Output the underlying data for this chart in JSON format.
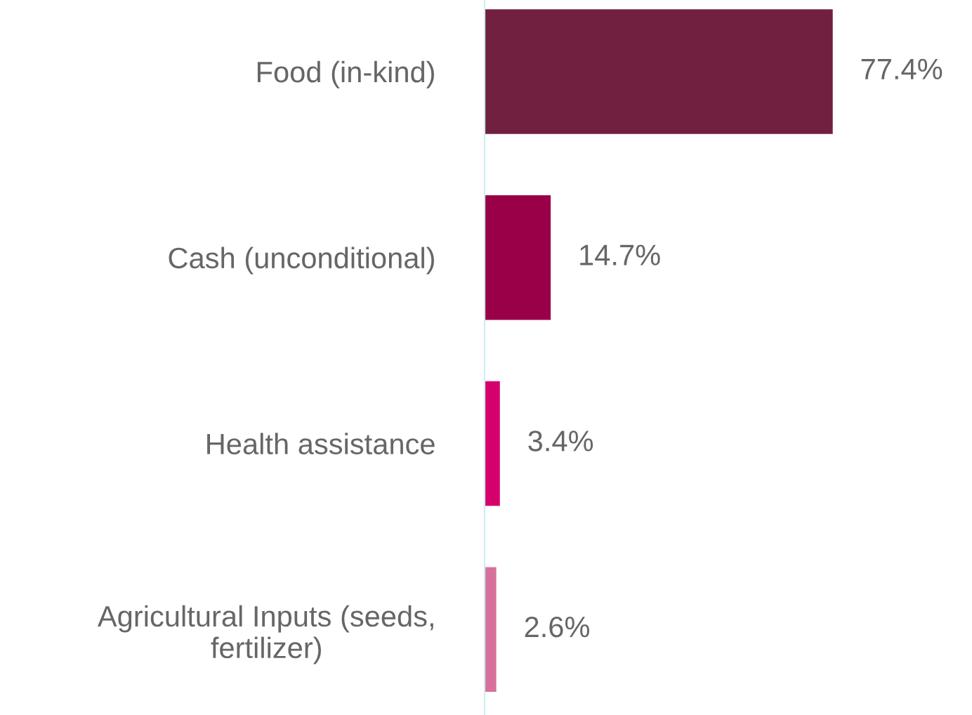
{
  "chart_data": {
    "type": "bar",
    "orientation": "horizontal",
    "categories": [
      "Food (in-kind)",
      "Cash (unconditional)",
      "Health assistance",
      "Agricultural Inputs (seeds,\nfertilizer)"
    ],
    "values": [
      77.4,
      14.7,
      3.4,
      2.6
    ],
    "colors": [
      "#722040",
      "#990048",
      "#d6006c",
      "#d8709c"
    ],
    "value_labels": [
      "77.4%",
      "14.7%",
      "3.4%",
      "2.6%"
    ],
    "grid": false,
    "legend": false
  }
}
